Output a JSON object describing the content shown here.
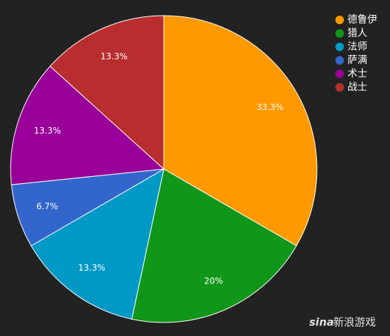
{
  "chart_data": {
    "type": "pie",
    "categories": [
      "德鲁伊",
      "猎人",
      "法师",
      "萨满",
      "术士",
      "战士"
    ],
    "values": [
      33.3,
      20,
      13.3,
      6.7,
      13.3,
      13.3
    ],
    "value_labels": [
      "33.3%",
      "20%",
      "13.3%",
      "6.7%",
      "13.3%",
      "13.3%"
    ],
    "colors": [
      "#ff9900",
      "#109618",
      "#0099c6",
      "#3366cc",
      "#990099",
      "#b82e2e"
    ],
    "legend": "top-right",
    "watermark_brand": "sina",
    "watermark": "新浪游戏"
  }
}
